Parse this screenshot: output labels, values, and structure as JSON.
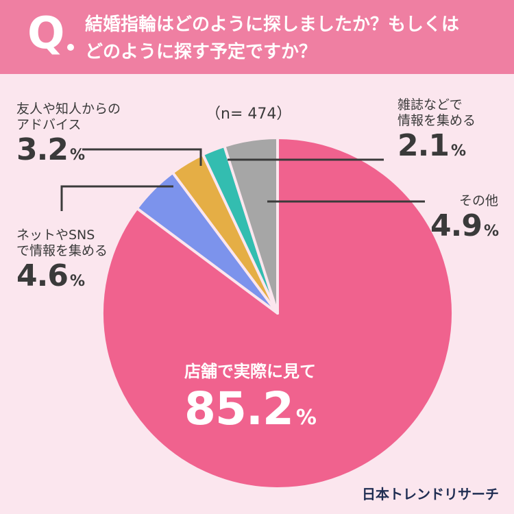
{
  "header": {
    "q_mark": "Q",
    "question_line1": "結婚指輪はどのように探しましたか？もしくは",
    "question_line2": "どのように探す予定ですか？"
  },
  "sample_size": "（n= 474）",
  "brand": "日本トレンドリサーチ",
  "percent_sign": "%",
  "labels": {
    "store": {
      "name": "店舗で実際に見て",
      "value": "85.2"
    },
    "net": {
      "name1": "ネットやSNS",
      "name2": "で情報を集める",
      "value": "4.6"
    },
    "friends": {
      "name1": "友人や知人からの",
      "name2": "アドバイス",
      "value": "3.2"
    },
    "magazine": {
      "name1": "雑誌などで",
      "name2": "情報を集める",
      "value": "2.1"
    },
    "other": {
      "name": "その他",
      "value": "4.9"
    }
  },
  "chart_data": {
    "type": "pie",
    "slices": [
      {
        "label": "店舗で実際に見て",
        "value": 85.2,
        "color": "#f0628e"
      },
      {
        "label": "ネットやSNSで情報を集める",
        "value": 4.6,
        "color": "#7c93ec"
      },
      {
        "label": "友人や知人からのアドバイス",
        "value": 3.2,
        "color": "#e5ae45"
      },
      {
        "label": "雑誌などで情報を集める",
        "value": 2.1,
        "color": "#33bdb0"
      },
      {
        "label": "その他",
        "value": 4.9,
        "color": "#a6a6a6"
      }
    ],
    "sample": "n=474"
  }
}
